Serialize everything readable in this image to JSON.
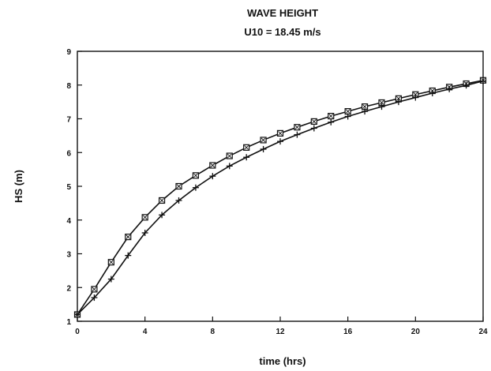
{
  "chart_data": {
    "type": "line",
    "title": "WAVE HEIGHT",
    "subtitle": "U10 = 18.45 m/s",
    "xlabel": "time (hrs)",
    "ylabel": "HS (m)",
    "xlim": [
      0,
      24
    ],
    "ylim": [
      1,
      9
    ],
    "x_ticks": [
      0,
      4,
      8,
      12,
      16,
      20,
      24
    ],
    "y_ticks": [
      1,
      2,
      3,
      4,
      5,
      6,
      7,
      8,
      9
    ],
    "grid": false,
    "legend": "none",
    "x": [
      0,
      1,
      2,
      3,
      4,
      5,
      6,
      7,
      8,
      9,
      10,
      11,
      12,
      13,
      14,
      15,
      16,
      17,
      18,
      19,
      20,
      21,
      22,
      23,
      24
    ],
    "series": [
      {
        "marker": "square-x",
        "values": [
          1.2,
          1.95,
          2.75,
          3.5,
          4.08,
          4.58,
          5.0,
          5.32,
          5.62,
          5.9,
          6.15,
          6.37,
          6.57,
          6.75,
          6.92,
          7.08,
          7.22,
          7.36,
          7.48,
          7.6,
          7.72,
          7.83,
          7.94,
          8.04,
          8.14
        ]
      },
      {
        "marker": "plus",
        "values": [
          1.2,
          1.7,
          2.25,
          2.95,
          3.62,
          4.15,
          4.58,
          4.96,
          5.3,
          5.6,
          5.86,
          6.1,
          6.33,
          6.53,
          6.72,
          6.9,
          7.07,
          7.22,
          7.36,
          7.5,
          7.63,
          7.76,
          7.88,
          7.99,
          8.12
        ]
      }
    ]
  }
}
